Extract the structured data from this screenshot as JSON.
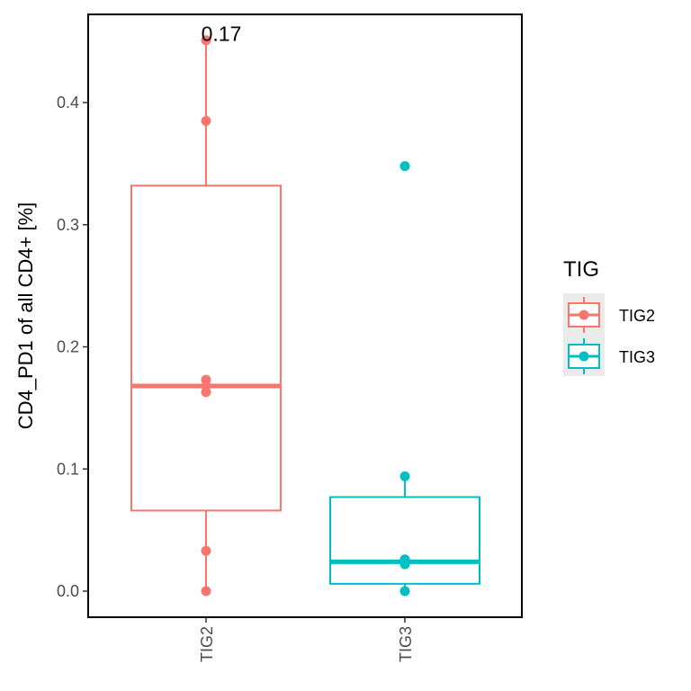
{
  "chart_data": {
    "type": "box",
    "categories": [
      "TIG2",
      "TIG3"
    ],
    "ylabel": "CD4_PD1 of all CD4+ [%]",
    "xlabel": "",
    "ylim": [
      -0.022,
      0.472
    ],
    "yticks": [
      0.0,
      0.1,
      0.2,
      0.3,
      0.4
    ],
    "ytick_labels": [
      "0.0",
      "0.1",
      "0.2",
      "0.3",
      "0.4"
    ],
    "grid": false,
    "legend": {
      "title": "TIG",
      "placement": "right",
      "entries": [
        {
          "label": "TIG2",
          "color": "#F8766D"
        },
        {
          "label": "TIG3",
          "color": "#00BFC4"
        }
      ]
    },
    "annotations": [
      {
        "text": "0.17",
        "category": "TIG2",
        "y": 0.452
      }
    ],
    "series": [
      {
        "category": "TIG2",
        "color": "#F8766D",
        "box": {
          "min": 0.0,
          "q1": 0.066,
          "median": 0.168,
          "q3": 0.332,
          "max": 0.451
        },
        "points": [
          0.0,
          0.033,
          0.163,
          0.168,
          0.173,
          0.385,
          0.451
        ]
      },
      {
        "category": "TIG3",
        "color": "#00BFC4",
        "box": {
          "min": 0.0,
          "q1": 0.006,
          "median": 0.024,
          "q3": 0.077,
          "max": 0.094
        },
        "points": [
          0.0,
          0.022,
          0.026,
          0.094,
          0.348
        ]
      }
    ]
  }
}
